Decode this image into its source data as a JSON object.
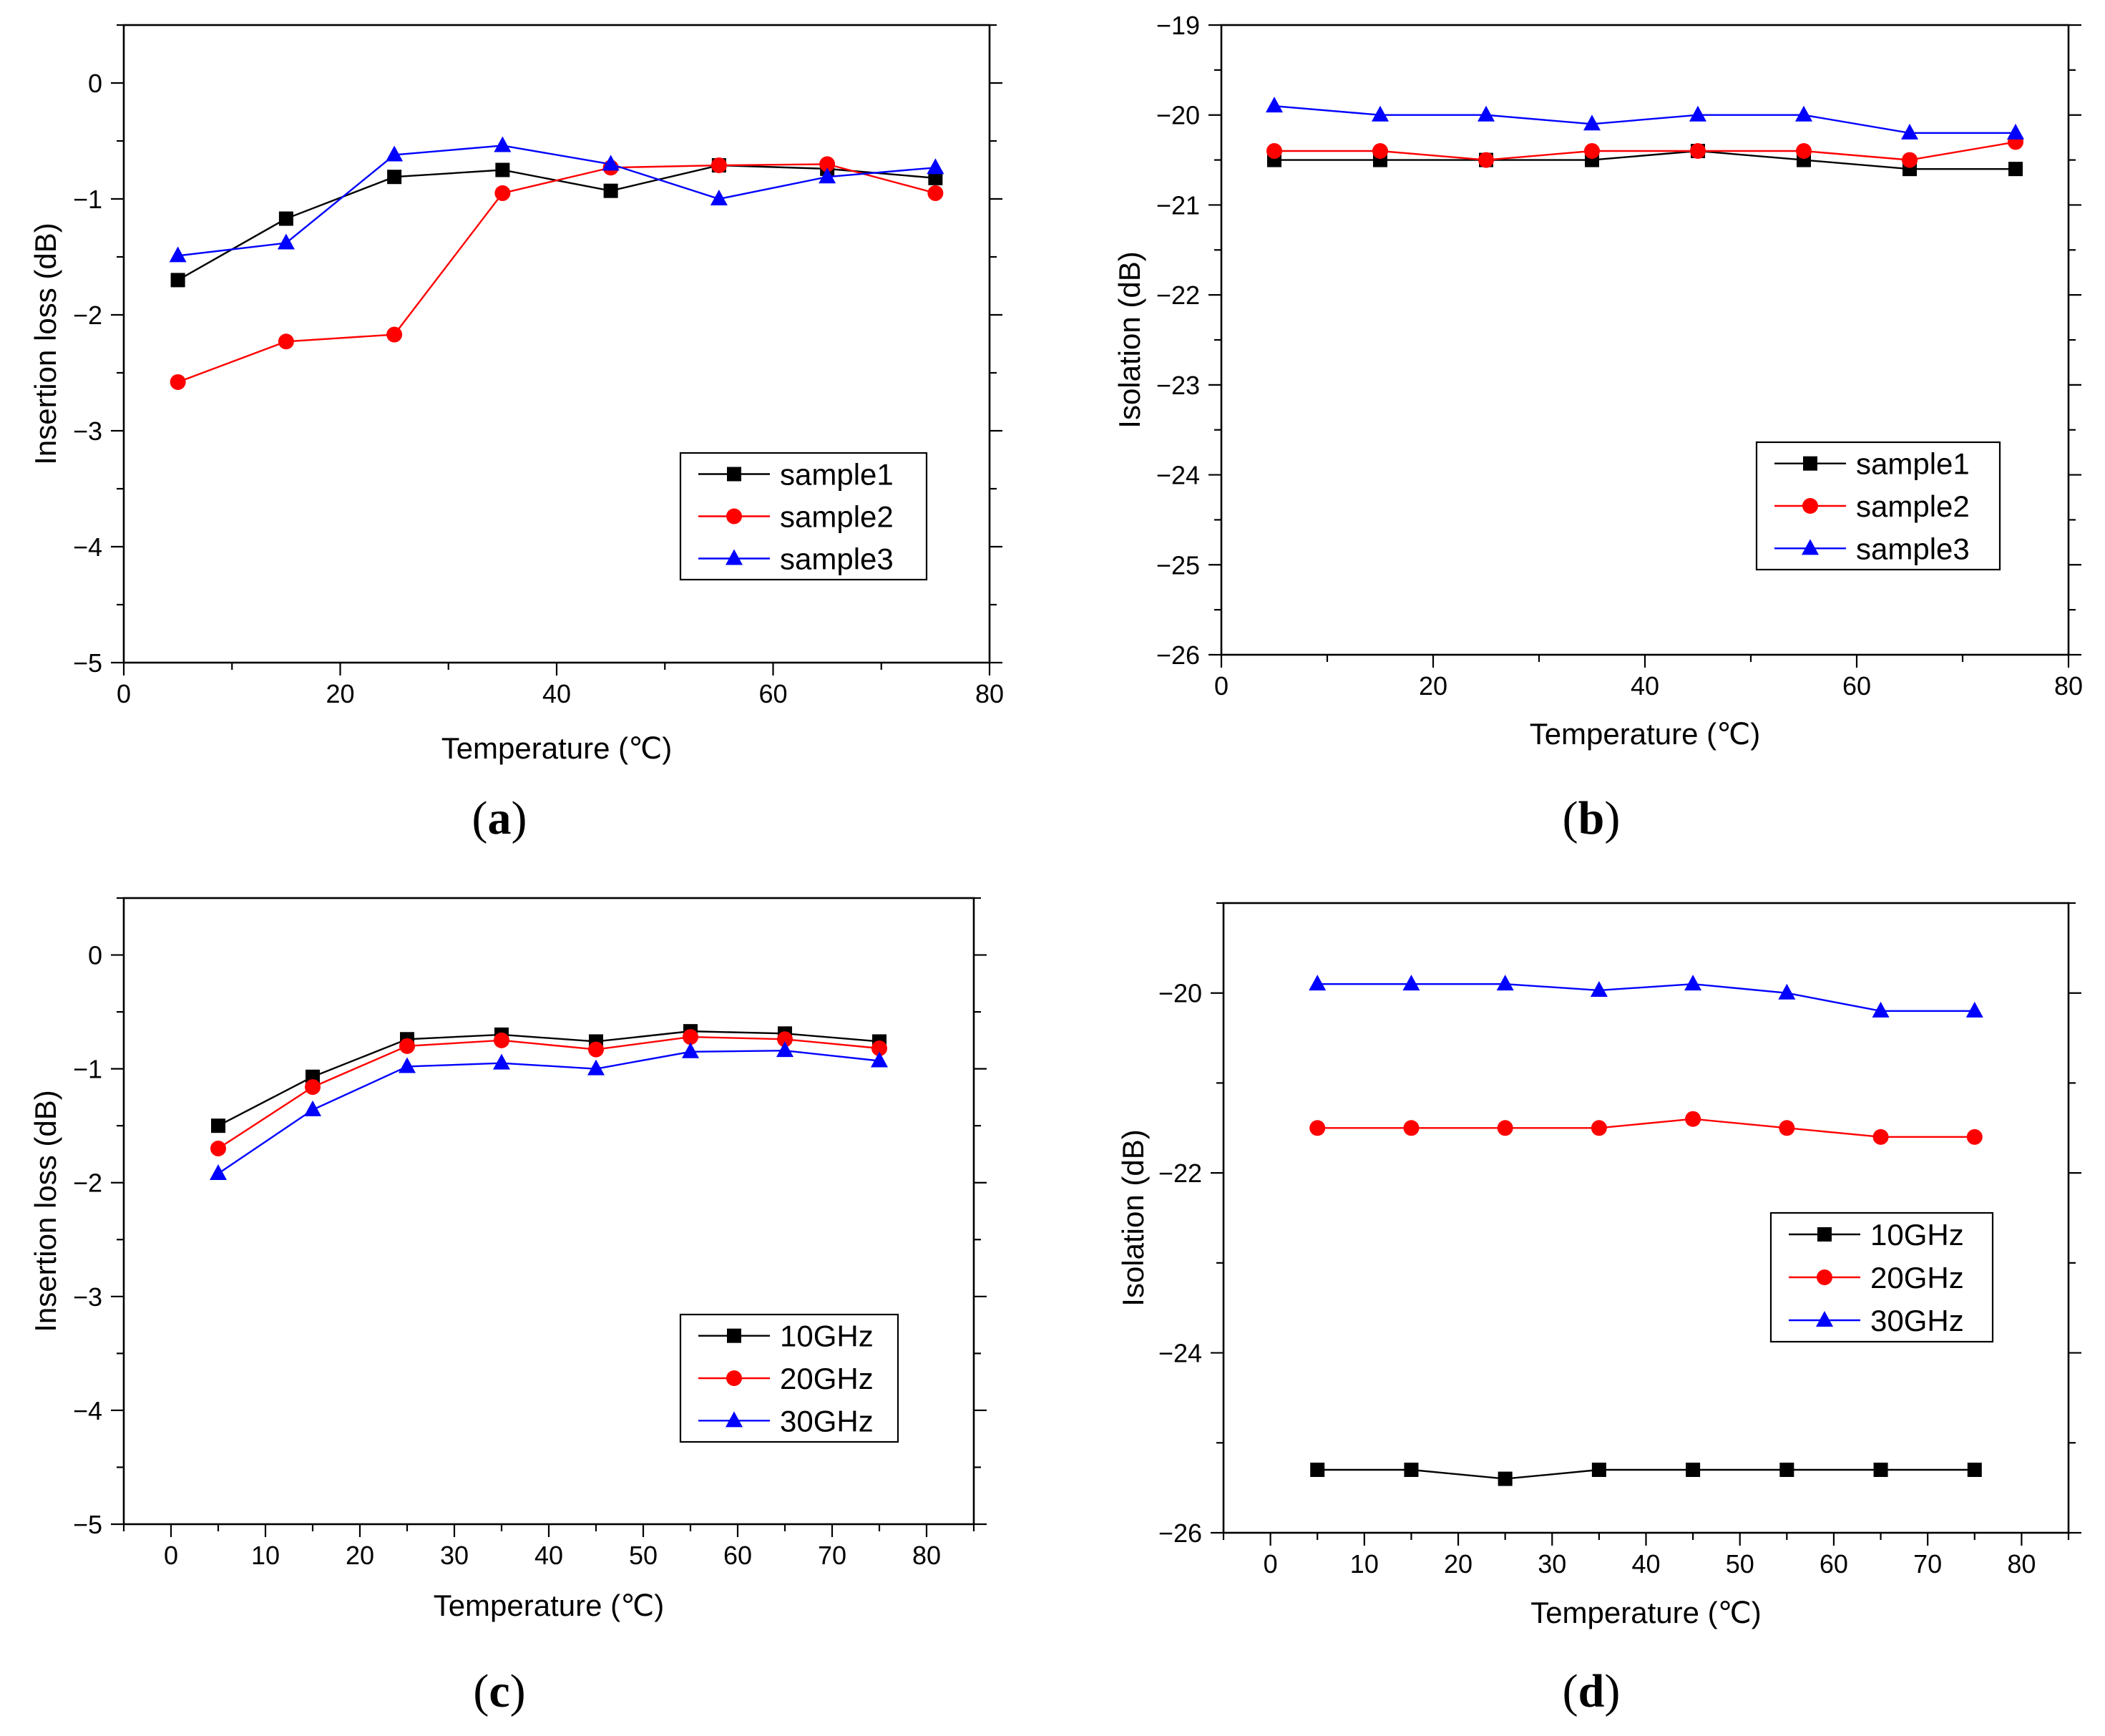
{
  "chart_data": [
    {
      "panel": "(a)",
      "panel_letter": "a",
      "type": "line",
      "xlabel": "Temperature (℃)",
      "ylabel": "Insertion loss (dB)",
      "xlim": [
        0,
        80
      ],
      "ylim": [
        -5,
        0.5
      ],
      "xticks": [
        0,
        20,
        40,
        60,
        80
      ],
      "yticks": [
        0,
        -1,
        -2,
        -3,
        -4,
        -5
      ],
      "x_minor_step": 10,
      "y_minor_step": 0.5,
      "legend_position": "lower-right",
      "x": [
        5,
        15,
        25,
        35,
        45,
        55,
        65,
        75
      ],
      "series": [
        {
          "name": "sample1",
          "color": "#000000",
          "marker": "square",
          "values": [
            -1.7,
            -1.17,
            -0.81,
            -0.75,
            -0.93,
            -0.71,
            -0.74,
            -0.82
          ]
        },
        {
          "name": "sample2",
          "color": "#ff0000",
          "marker": "circle",
          "values": [
            -2.58,
            -2.23,
            -2.17,
            -0.95,
            -0.73,
            -0.71,
            -0.7,
            -0.95
          ]
        },
        {
          "name": "sample3",
          "color": "#0000ff",
          "marker": "triangle",
          "values": [
            -1.49,
            -1.38,
            -0.62,
            -0.54,
            -0.7,
            -1.0,
            -0.81,
            -0.73
          ]
        }
      ]
    },
    {
      "panel": "(b)",
      "panel_letter": "b",
      "type": "line",
      "xlabel": "Temperature (℃)",
      "ylabel": "Isolation (dB)",
      "xlim": [
        0,
        80
      ],
      "ylim": [
        -26,
        -19
      ],
      "xticks": [
        0,
        20,
        40,
        60,
        80
      ],
      "yticks": [
        -19,
        -20,
        -21,
        -22,
        -23,
        -24,
        -25,
        -26
      ],
      "x_minor_step": 10,
      "y_minor_step": 0.5,
      "legend_position": "lower-right",
      "x": [
        5,
        15,
        25,
        35,
        45,
        55,
        65,
        75
      ],
      "series": [
        {
          "name": "sample1",
          "color": "#000000",
          "marker": "square",
          "values": [
            -20.5,
            -20.5,
            -20.5,
            -20.5,
            -20.4,
            -20.5,
            -20.6,
            -20.6
          ]
        },
        {
          "name": "sample2",
          "color": "#ff0000",
          "marker": "circle",
          "values": [
            -20.4,
            -20.4,
            -20.5,
            -20.4,
            -20.4,
            -20.4,
            -20.5,
            -20.3
          ]
        },
        {
          "name": "sample3",
          "color": "#0000ff",
          "marker": "triangle",
          "values": [
            -19.9,
            -20.0,
            -20.0,
            -20.1,
            -20.0,
            -20.0,
            -20.2,
            -20.2
          ]
        }
      ]
    },
    {
      "panel": "(c)",
      "panel_letter": "c",
      "type": "line",
      "xlabel": "Temperature (℃)",
      "ylabel": "Insertion loss (dB)",
      "xlim": [
        -5,
        85
      ],
      "ylim": [
        -5,
        0.5
      ],
      "xticks": [
        0,
        10,
        20,
        30,
        40,
        50,
        60,
        70,
        80
      ],
      "yticks": [
        0,
        -1,
        -2,
        -3,
        -4,
        -5
      ],
      "x_minor_step": 5,
      "y_minor_step": 0.5,
      "legend_position": "lower-right",
      "x": [
        5,
        15,
        25,
        35,
        45,
        55,
        65,
        75
      ],
      "series": [
        {
          "name": "10GHz",
          "color": "#000000",
          "marker": "square",
          "values": [
            -1.5,
            -1.07,
            -0.74,
            -0.7,
            -0.76,
            -0.67,
            -0.69,
            -0.76
          ]
        },
        {
          "name": "20GHz",
          "color": "#ff0000",
          "marker": "circle",
          "values": [
            -1.7,
            -1.16,
            -0.8,
            -0.75,
            -0.83,
            -0.72,
            -0.74,
            -0.82
          ]
        },
        {
          "name": "30GHz",
          "color": "#0000ff",
          "marker": "triangle",
          "values": [
            -1.92,
            -1.36,
            -0.98,
            -0.95,
            -1.0,
            -0.85,
            -0.84,
            -0.93
          ]
        }
      ]
    },
    {
      "panel": "(d)",
      "panel_letter": "d",
      "type": "line",
      "xlabel": "Temperature (℃)",
      "ylabel": "Isolation (dB)",
      "xlim": [
        -5,
        85
      ],
      "ylim": [
        -26,
        -19
      ],
      "xticks": [
        0,
        10,
        20,
        30,
        40,
        50,
        60,
        70,
        80
      ],
      "yticks": [
        -20,
        -22,
        -24,
        -26
      ],
      "x_minor_step": 5,
      "y_minor_step": 1,
      "legend_position": "center-right",
      "x": [
        5,
        15,
        25,
        35,
        45,
        55,
        65,
        75
      ],
      "series": [
        {
          "name": "10GHz",
          "color": "#000000",
          "marker": "square",
          "values": [
            -25.3,
            -25.3,
            -25.4,
            -25.3,
            -25.3,
            -25.3,
            -25.3,
            -25.3
          ]
        },
        {
          "name": "20GHz",
          "color": "#ff0000",
          "marker": "circle",
          "values": [
            -21.5,
            -21.5,
            -21.5,
            -21.5,
            -21.4,
            -21.5,
            -21.6,
            -21.6
          ]
        },
        {
          "name": "30GHz",
          "color": "#0000ff",
          "marker": "triangle",
          "values": [
            -19.9,
            -19.9,
            -19.9,
            -19.97,
            -19.9,
            -20.0,
            -20.2,
            -20.2
          ]
        }
      ]
    }
  ]
}
